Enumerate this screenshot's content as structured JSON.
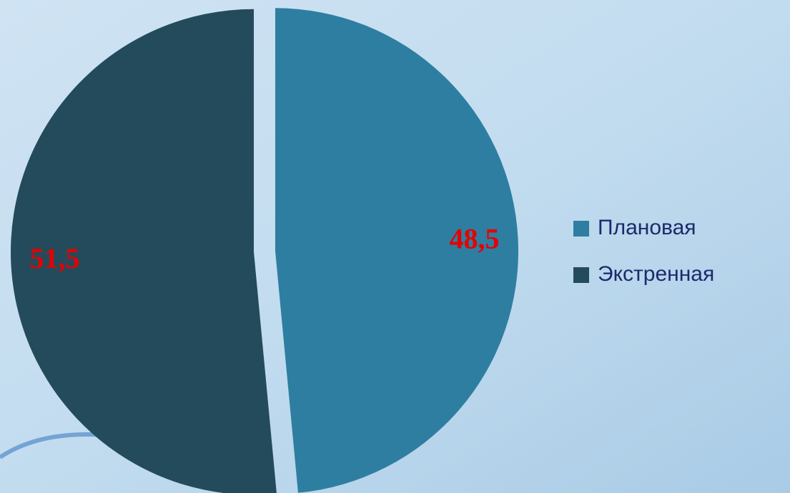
{
  "chart_data": {
    "type": "pie",
    "categories": [
      "Плановая",
      "Экстренная"
    ],
    "values": [
      48.5,
      51.5
    ],
    "value_labels": [
      "48,5",
      "51,5"
    ],
    "colors": [
      "#2e7ea1",
      "#244b5b"
    ],
    "legend": "right"
  }
}
